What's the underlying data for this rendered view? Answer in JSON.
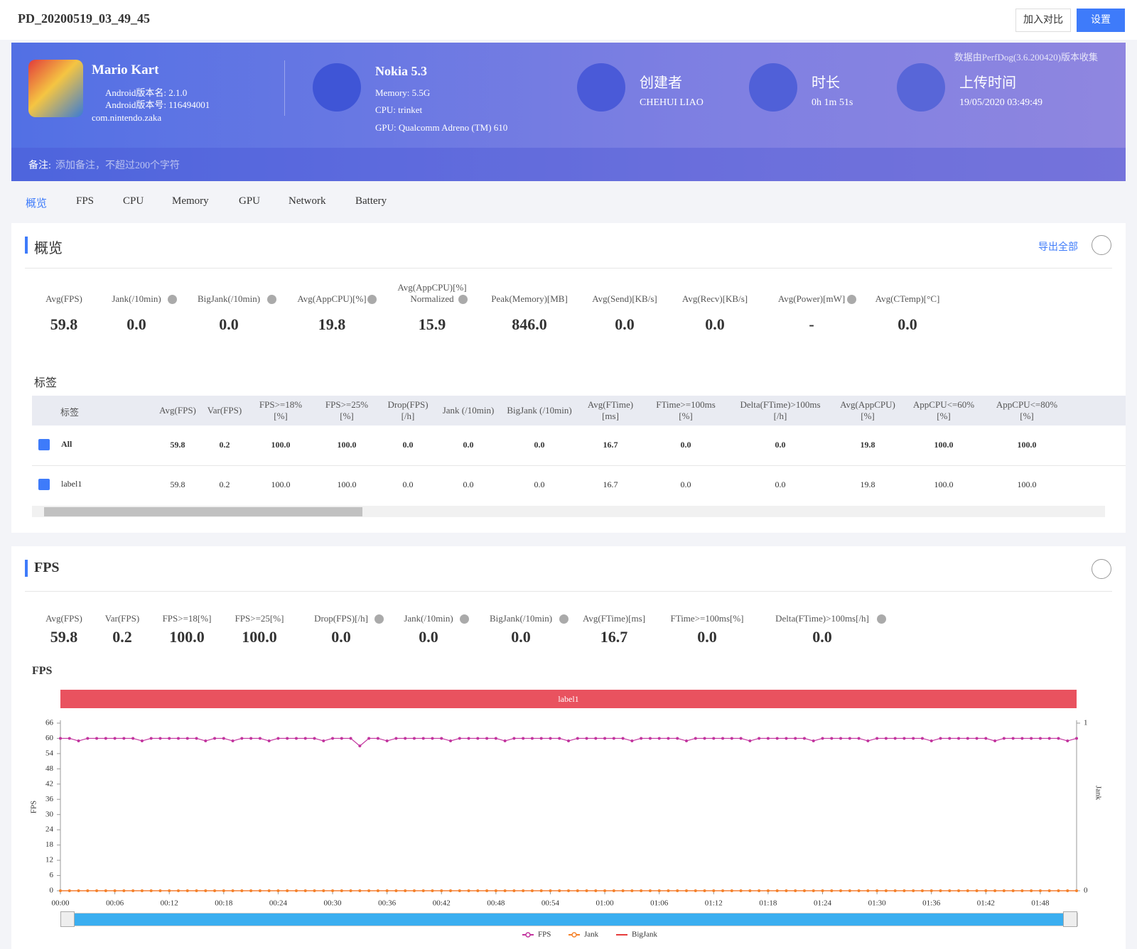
{
  "header": {
    "title": "PD_20200519_03_49_45",
    "buttons": [
      "加入对比",
      "设置"
    ]
  },
  "banner": {
    "app": {
      "name": "Mario Kart",
      "version": "Android版本名: 2.1.0",
      "build": "Android版本号: 116494001",
      "package": "com.nintendo.zaka"
    },
    "device": {
      "name": "Nokia 5.3",
      "memory": "Memory: 5.5G",
      "cpu": "CPU: trinket",
      "gpu": "GPU: Qualcomm Adreno (TM) 610"
    },
    "creator": {
      "label": "创建者",
      "value": "CHEHUI LIAO"
    },
    "duration": {
      "label": "时长",
      "value": "0h 1m 51s"
    },
    "upload": {
      "label": "上传时间",
      "value": "19/05/2020 03:49:49"
    },
    "source_note": "数据由PerfDog(3.6.200420)版本收集",
    "remark_label": "备注:",
    "remark_placeholder": "添加备注，不超过200个字符"
  },
  "tabs": [
    "概览",
    "FPS",
    "CPU",
    "Memory",
    "GPU",
    "Network",
    "Battery"
  ],
  "overview": {
    "title": "概览",
    "export": "导出全部",
    "metrics": [
      {
        "label": "Avg(FPS)",
        "value": "59.8"
      },
      {
        "label": "Jank(/10min)",
        "value": "0.0",
        "help": true
      },
      {
        "label": "BigJank(/10min)",
        "value": "0.0",
        "help": true
      },
      {
        "label": "Avg(AppCPU)[%]",
        "value": "19.8",
        "help": true
      },
      {
        "label": "Avg(AppCPU)[%]\nNormalized",
        "value": "15.9",
        "help": true
      },
      {
        "label": "Peak(Memory)[MB]",
        "value": "846.0"
      },
      {
        "label": "Avg(Send)[KB/s]",
        "value": "0.0"
      },
      {
        "label": "Avg(Recv)[KB/s]",
        "value": "0.0"
      },
      {
        "label": "Avg(Power)[mW]",
        "value": "-",
        "help": true
      },
      {
        "label": "Avg(CTemp)[°C]",
        "value": "0.0"
      }
    ],
    "tags_title": "标签",
    "table": {
      "columns": [
        "标签",
        "Avg(FPS)",
        "Var(FPS)",
        "FPS>=18%\n[%]",
        "FPS>=25%\n[%]",
        "Drop(FPS)\n[/h]",
        "Jank (/10min)",
        "BigJank (/10min)",
        "Avg(FTime)\n[ms]",
        "FTime>=100ms\n[%]",
        "Delta(FTime)>100ms\n[/h]",
        "Avg(AppCPU)\n[%]",
        "AppCPU<=60%\n[%]",
        "AppCPU<=80%\n[%]"
      ],
      "rows": [
        [
          "All",
          "59.8",
          "0.2",
          "100.0",
          "100.0",
          "0.0",
          "0.0",
          "0.0",
          "16.7",
          "0.0",
          "0.0",
          "19.8",
          "100.0",
          "100.0"
        ],
        [
          "label1",
          "59.8",
          "0.2",
          "100.0",
          "100.0",
          "0.0",
          "0.0",
          "0.0",
          "16.7",
          "0.0",
          "0.0",
          "19.8",
          "100.0",
          "100.0"
        ]
      ]
    }
  },
  "fps_section": {
    "title": "FPS",
    "metrics": [
      {
        "label": "Avg(FPS)",
        "value": "59.8"
      },
      {
        "label": "Var(FPS)",
        "value": "0.2"
      },
      {
        "label": "FPS>=18[%]",
        "value": "100.0"
      },
      {
        "label": "FPS>=25[%]",
        "value": "100.0"
      },
      {
        "label": "Drop(FPS)[/h]",
        "value": "0.0",
        "help": true
      },
      {
        "label": "Jank(/10min)",
        "value": "0.0",
        "help": true
      },
      {
        "label": "BigJank(/10min)",
        "value": "0.0",
        "help": true
      },
      {
        "label": "Avg(FTime)[ms]",
        "value": "16.7"
      },
      {
        "label": "FTime>=100ms[%]",
        "value": "0.0"
      },
      {
        "label": "Delta(FTime)>100ms[/h]",
        "value": "0.0",
        "help": true
      }
    ]
  },
  "chart_data": {
    "type": "line",
    "title": "FPS",
    "band_label": "label1",
    "y_label": "FPS",
    "y2_label": "Jank",
    "x": [
      0,
      1,
      2,
      3,
      4,
      5,
      6,
      7,
      8,
      9,
      10,
      11,
      12,
      13,
      14,
      15,
      16,
      17,
      18,
      19,
      20,
      21,
      22,
      23,
      24,
      25,
      26,
      27,
      28,
      29,
      30,
      31,
      32,
      33,
      34,
      35,
      36,
      37,
      38,
      39,
      40,
      41,
      42,
      43,
      44,
      45,
      46,
      47,
      48,
      49,
      50,
      51,
      52,
      53,
      54,
      55,
      56,
      57,
      58,
      59,
      60,
      61,
      62,
      63,
      64,
      65,
      66,
      67,
      68,
      69,
      70,
      71,
      72,
      73,
      74,
      75,
      76,
      77,
      78,
      79,
      80,
      81,
      82,
      83,
      84,
      85,
      86,
      87,
      88,
      89,
      90,
      91,
      92,
      93,
      94,
      95,
      96,
      97,
      98,
      99,
      100,
      101,
      102,
      103,
      104,
      105,
      106,
      107,
      108,
      109,
      110,
      111,
      112
    ],
    "xlim": [
      0,
      112
    ],
    "xticks": [
      {
        "value": 0,
        "label": "00:00"
      },
      {
        "value": 6,
        "label": "00:06"
      },
      {
        "value": 12,
        "label": "00:12"
      },
      {
        "value": 18,
        "label": "00:18"
      },
      {
        "value": 24,
        "label": "00:24"
      },
      {
        "value": 30,
        "label": "00:30"
      },
      {
        "value": 36,
        "label": "00:36"
      },
      {
        "value": 42,
        "label": "00:42"
      },
      {
        "value": 48,
        "label": "00:48"
      },
      {
        "value": 54,
        "label": "00:54"
      },
      {
        "value": 60,
        "label": "01:00"
      },
      {
        "value": 66,
        "label": "01:06"
      },
      {
        "value": 72,
        "label": "01:12"
      },
      {
        "value": 78,
        "label": "01:18"
      },
      {
        "value": 84,
        "label": "01:24"
      },
      {
        "value": 90,
        "label": "01:30"
      },
      {
        "value": 96,
        "label": "01:36"
      },
      {
        "value": 102,
        "label": "01:42"
      },
      {
        "value": 108,
        "label": "01:48"
      }
    ],
    "ylim": [
      0,
      66
    ],
    "yticks": [
      0,
      6,
      12,
      18,
      24,
      30,
      36,
      42,
      48,
      54,
      60,
      66
    ],
    "y2lim": [
      0,
      1
    ],
    "y2ticks": [
      0,
      1
    ],
    "grid": false,
    "series": [
      {
        "name": "FPS",
        "color": "#c2349e",
        "marker": true,
        "axis": "y",
        "values": [
          60,
          60,
          59,
          60,
          60,
          60,
          60,
          60,
          60,
          59,
          60,
          60,
          60,
          60,
          60,
          60,
          59,
          60,
          60,
          59,
          60,
          60,
          60,
          59,
          60,
          60,
          60,
          60,
          60,
          59,
          60,
          60,
          60,
          57,
          60,
          60,
          59,
          60,
          60,
          60,
          60,
          60,
          60,
          59,
          60,
          60,
          60,
          60,
          60,
          59,
          60,
          60,
          60,
          60,
          60,
          60,
          59,
          60,
          60,
          60,
          60,
          60,
          60,
          59,
          60,
          60,
          60,
          60,
          60,
          59,
          60,
          60,
          60,
          60,
          60,
          60,
          59,
          60,
          60,
          60,
          60,
          60,
          60,
          59,
          60,
          60,
          60,
          60,
          60,
          59,
          60,
          60,
          60,
          60,
          60,
          60,
          59,
          60,
          60,
          60,
          60,
          60,
          60,
          59,
          60,
          60,
          60,
          60,
          60,
          60,
          60,
          59,
          60
        ]
      },
      {
        "name": "Jank",
        "color": "#f5822a",
        "marker": true,
        "axis": "y2",
        "values": [
          0,
          0,
          0,
          0,
          0,
          0,
          0,
          0,
          0,
          0,
          0,
          0,
          0,
          0,
          0,
          0,
          0,
          0,
          0,
          0,
          0,
          0,
          0,
          0,
          0,
          0,
          0,
          0,
          0,
          0,
          0,
          0,
          0,
          0,
          0,
          0,
          0,
          0,
          0,
          0,
          0,
          0,
          0,
          0,
          0,
          0,
          0,
          0,
          0,
          0,
          0,
          0,
          0,
          0,
          0,
          0,
          0,
          0,
          0,
          0,
          0,
          0,
          0,
          0,
          0,
          0,
          0,
          0,
          0,
          0,
          0,
          0,
          0,
          0,
          0,
          0,
          0,
          0,
          0,
          0,
          0,
          0,
          0,
          0,
          0,
          0,
          0,
          0,
          0,
          0,
          0,
          0,
          0,
          0,
          0,
          0,
          0,
          0,
          0,
          0,
          0,
          0,
          0,
          0,
          0,
          0,
          0,
          0,
          0,
          0,
          0,
          0,
          0
        ]
      },
      {
        "name": "BigJank",
        "color": "#e63c3c",
        "marker": false,
        "axis": "y2",
        "values": [
          0,
          0,
          0,
          0,
          0,
          0,
          0,
          0,
          0,
          0,
          0,
          0,
          0,
          0,
          0,
          0,
          0,
          0,
          0,
          0,
          0,
          0,
          0,
          0,
          0,
          0,
          0,
          0,
          0,
          0,
          0,
          0,
          0,
          0,
          0,
          0,
          0,
          0,
          0,
          0,
          0,
          0,
          0,
          0,
          0,
          0,
          0,
          0,
          0,
          0,
          0,
          0,
          0,
          0,
          0,
          0,
          0,
          0,
          0,
          0,
          0,
          0,
          0,
          0,
          0,
          0,
          0,
          0,
          0,
          0,
          0,
          0,
          0,
          0,
          0,
          0,
          0,
          0,
          0,
          0,
          0,
          0,
          0,
          0,
          0,
          0,
          0,
          0,
          0,
          0,
          0,
          0,
          0,
          0,
          0,
          0,
          0,
          0,
          0,
          0,
          0,
          0,
          0,
          0,
          0,
          0,
          0,
          0,
          0,
          0,
          0,
          0,
          0
        ]
      }
    ]
  }
}
